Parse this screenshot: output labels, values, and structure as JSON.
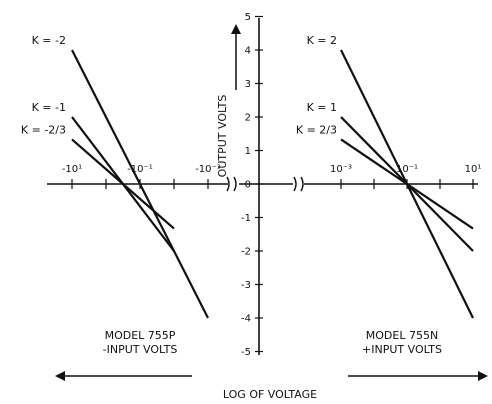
{
  "chart_data": {
    "type": "line",
    "y_axis": {
      "label": "OUTPUT VOLTS",
      "range": [
        -5,
        5
      ],
      "ticks": [
        5,
        4,
        3,
        2,
        1,
        0,
        -1,
        -2,
        -3,
        -4,
        -5
      ],
      "tick_labels": [
        "5",
        "4",
        "3",
        "2",
        "1",
        "0",
        "-1",
        "-2",
        "-3",
        "-4",
        "-5"
      ]
    },
    "x_axis": {
      "label": "LOG OF VOLTAGE",
      "left_panel": {
        "model_label": "MODEL 755P",
        "input_label": "-INPUT VOLTS",
        "tick_labels": [
          "-10¹",
          "-10⁻¹",
          "-10⁻³"
        ]
      },
      "right_panel": {
        "model_label": "MODEL 755N",
        "input_label": "+INPUT VOLTS",
        "tick_labels": [
          "10⁻³",
          "10⁻¹",
          "10¹"
        ]
      }
    },
    "series": [
      {
        "name": "K = -2",
        "panel": "left",
        "points": [
          [
            1,
            4
          ],
          [
            -3,
            -4
          ]
        ]
      },
      {
        "name": "K = -1",
        "panel": "left",
        "points": [
          [
            1,
            2
          ],
          [
            -2,
            -2
          ]
        ]
      },
      {
        "name": "K = -2/3",
        "panel": "left",
        "points": [
          [
            1,
            1.33
          ],
          [
            -2,
            -1.33
          ]
        ]
      },
      {
        "name": "K = 2",
        "panel": "right",
        "points": [
          [
            -3,
            4
          ],
          [
            1,
            -4
          ]
        ]
      },
      {
        "name": "K = 1",
        "panel": "right",
        "points": [
          [
            -3,
            2
          ],
          [
            1,
            -2
          ]
        ]
      },
      {
        "name": "K = 2/3",
        "panel": "right",
        "points": [
          [
            -3,
            1.33
          ],
          [
            1,
            -1.33
          ]
        ]
      }
    ]
  }
}
